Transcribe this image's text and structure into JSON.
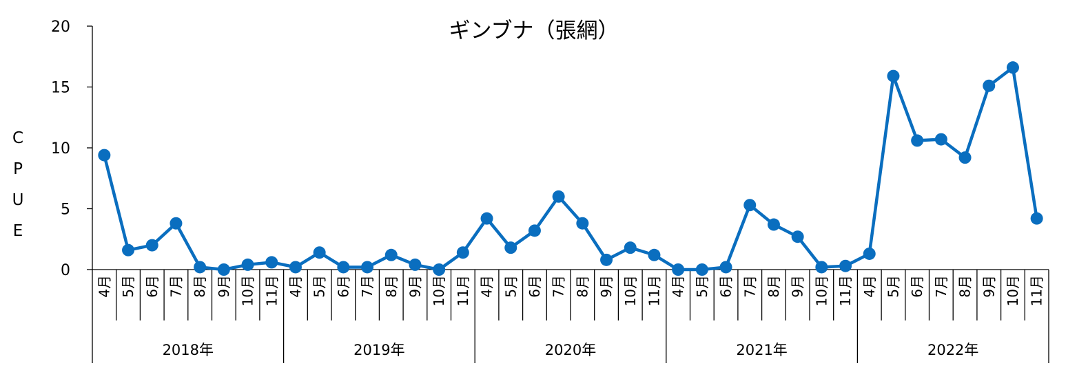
{
  "chart_data": {
    "type": "line",
    "title": "ギンブナ（張網）",
    "ylabel": "CPUE",
    "ylim": [
      0,
      20
    ],
    "yticks": [
      0,
      5,
      10,
      15,
      20
    ],
    "grid": false,
    "color": "#0a6ebf",
    "groups": [
      {
        "year": "2018年",
        "months": [
          "4月",
          "5月",
          "6月",
          "7月",
          "8月",
          "9月",
          "10月",
          "11月"
        ]
      },
      {
        "year": "2019年",
        "months": [
          "4月",
          "5月",
          "6月",
          "7月",
          "8月",
          "9月",
          "10月",
          "11月"
        ]
      },
      {
        "year": "2020年",
        "months": [
          "4月",
          "5月",
          "6月",
          "7月",
          "8月",
          "9月",
          "10月",
          "11月"
        ]
      },
      {
        "year": "2021年",
        "months": [
          "4月",
          "5月",
          "6月",
          "7月",
          "8月",
          "9月",
          "10月",
          "11月"
        ]
      },
      {
        "year": "2022年",
        "months": [
          "4月",
          "5月",
          "6月",
          "7月",
          "8月",
          "9月",
          "10月",
          "11月"
        ]
      }
    ],
    "series": [
      {
        "values": [
          9.4,
          1.6,
          2.0,
          3.8,
          0.2,
          0.0,
          0.4,
          0.6,
          0.2,
          1.4,
          0.2,
          0.2,
          1.2,
          0.4,
          0.0,
          1.4,
          4.2,
          1.8,
          3.2,
          6.0,
          3.8,
          0.8,
          1.8,
          1.2,
          0.0,
          0.0,
          0.2,
          5.3,
          3.7,
          2.7,
          0.2,
          0.3,
          1.3,
          15.9,
          10.6,
          10.7,
          9.2,
          15.1,
          16.6,
          4.2
        ]
      }
    ]
  }
}
